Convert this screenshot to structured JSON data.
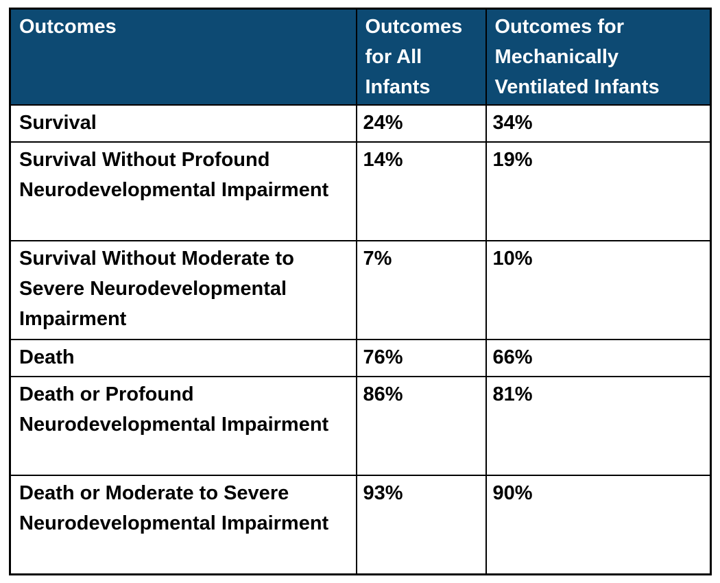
{
  "colors": {
    "header_bg": "#0d4a73",
    "header_text": "#ffffff",
    "body_text": "#000000",
    "border": "#000000",
    "body_bg": "#ffffff"
  },
  "table": {
    "headers": [
      "Outcomes",
      "Outcomes for All Infants",
      "Outcomes for Mechanically Ventilated Infants"
    ],
    "rows": [
      {
        "cells": [
          "Survival",
          "24%",
          "34%"
        ]
      },
      {
        "cells": [
          "Survival Without Profound Neurodevelopmental Impairment",
          "14%",
          "19%"
        ]
      },
      {
        "cells": [
          "Survival Without Moderate to Severe Neurodevelopmental Impairment",
          "7%",
          "10%"
        ]
      },
      {
        "cells": [
          "Death",
          "76%",
          "66%"
        ]
      },
      {
        "cells": [
          "Death or Profound Neurodevelopmental Impairment",
          "86%",
          "81%"
        ]
      },
      {
        "cells": [
          "Death or Moderate to Severe Neurodevelopmental Impairment",
          "93%",
          "90%"
        ]
      }
    ]
  },
  "chart_data": {
    "type": "table",
    "title": "",
    "columns": [
      "Outcomes",
      "Outcomes for All Infants",
      "Outcomes for Mechanically Ventilated Infants"
    ],
    "categories": [
      "Survival",
      "Survival Without Profound Neurodevelopmental Impairment",
      "Survival Without Moderate to Severe Neurodevelopmental Impairment",
      "Death",
      "Death or Profound Neurodevelopmental Impairment",
      "Death or Moderate to Severe Neurodevelopmental Impairment"
    ],
    "series": [
      {
        "name": "Outcomes for All Infants",
        "values": [
          24,
          14,
          7,
          76,
          86,
          93
        ],
        "unit": "%"
      },
      {
        "name": "Outcomes for Mechanically Ventilated Infants",
        "values": [
          34,
          19,
          10,
          66,
          81,
          90
        ],
        "unit": "%"
      }
    ],
    "rows": [
      [
        "Survival",
        "24%",
        "34%"
      ],
      [
        "Survival Without Profound Neurodevelopmental Impairment",
        "14%",
        "19%"
      ],
      [
        "Survival Without Moderate to Severe Neurodevelopmental Impairment",
        "7%",
        "10%"
      ],
      [
        "Death",
        "76%",
        "66%"
      ],
      [
        "Death or Profound Neurodevelopmental Impairment",
        "86%",
        "81%"
      ],
      [
        "Death or Moderate to Severe Neurodevelopmental Impairment",
        "93%",
        "90%"
      ]
    ]
  }
}
